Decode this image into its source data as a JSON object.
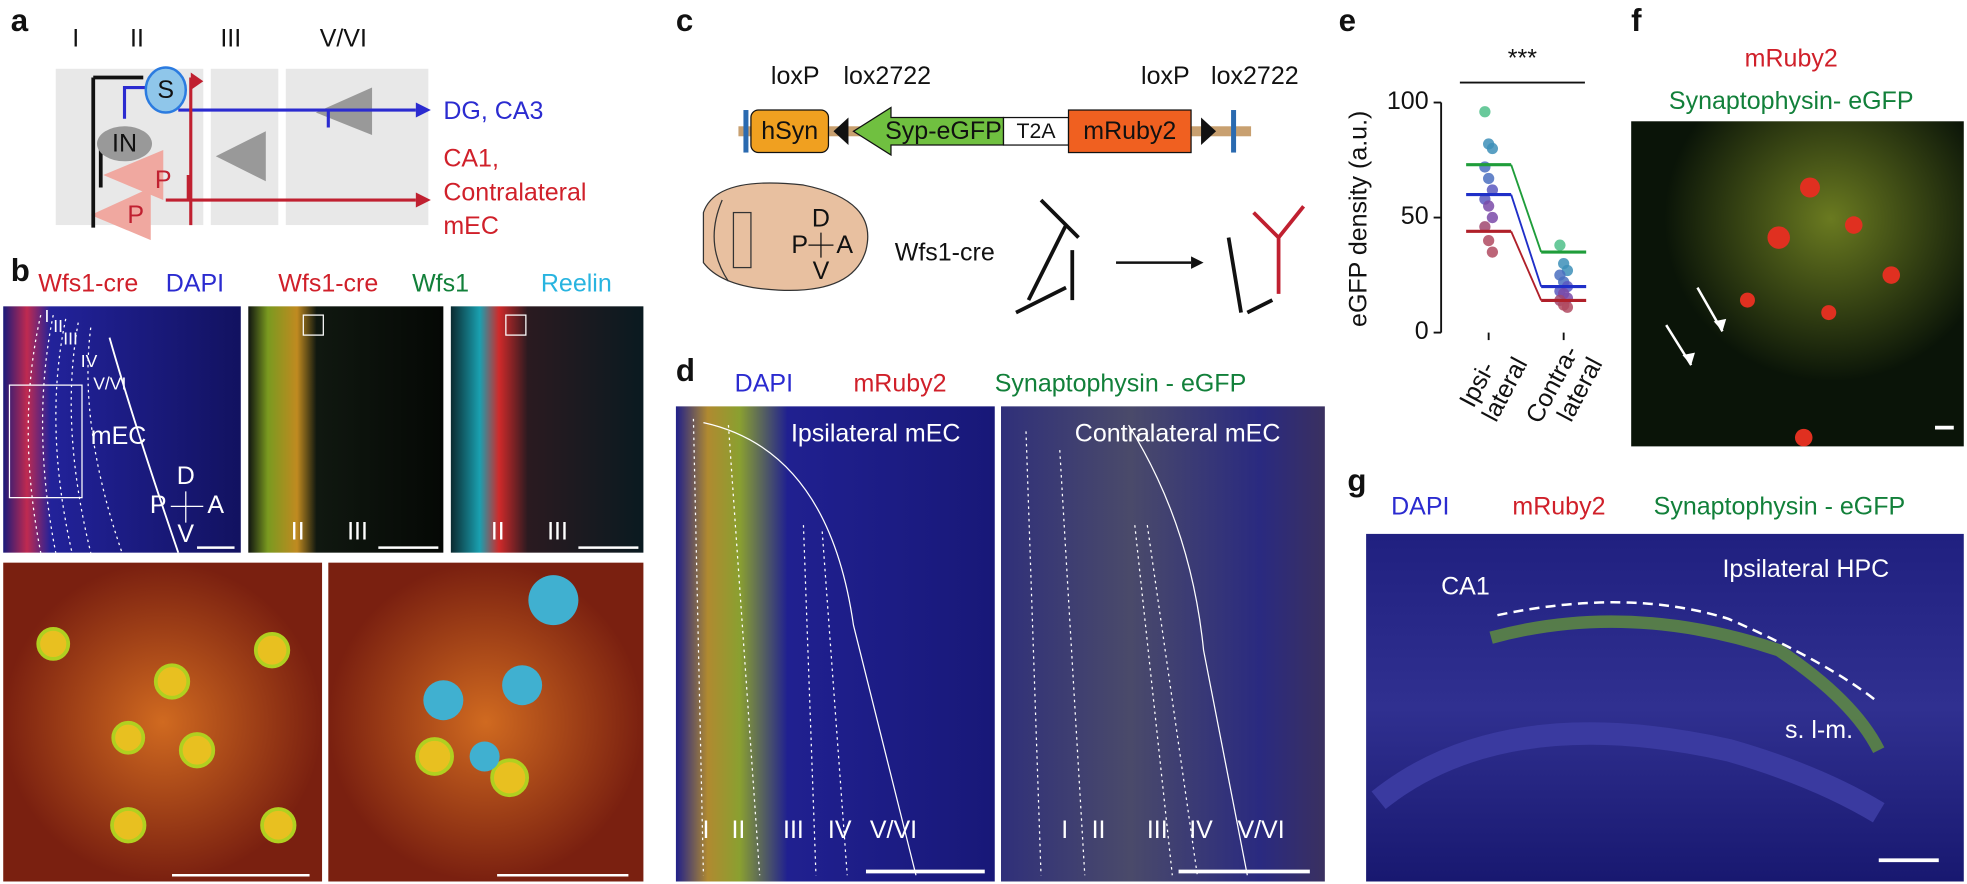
{
  "panels": {
    "a": {
      "label": "a",
      "layers": [
        "I",
        "II",
        "III",
        "V/VI"
      ],
      "cells": [
        "S",
        "IN",
        "P",
        "P"
      ],
      "blue_target": "DG, CA3",
      "red_target": [
        "CA1,",
        "Contralateral",
        "mEC"
      ]
    },
    "b": {
      "label": "b",
      "top_left": {
        "stains": [
          "Wfs1-cre",
          "DAPI"
        ],
        "layers": [
          "I",
          "II",
          "III",
          "IV",
          "V/VI"
        ],
        "region": "mEC",
        "compass": [
          "D",
          "P",
          "A",
          "V"
        ]
      },
      "top_right": {
        "stains": [
          "Wfs1-cre",
          "Wfs1",
          "Reelin"
        ],
        "layers": [
          "II",
          "III",
          "II",
          "III"
        ]
      }
    },
    "c": {
      "label": "c",
      "sites": [
        "loxP",
        "lox2722",
        "loxP",
        "lox2722"
      ],
      "elements": [
        "hSyn",
        "Syp-eGFP",
        "T2A",
        "mRuby2"
      ],
      "compass": [
        "D",
        "P",
        "A",
        "V"
      ],
      "mouse": "Wfs1-cre"
    },
    "d": {
      "label": "d",
      "stains": [
        "DAPI",
        "mRuby2",
        "Synaptophysin - eGFP"
      ],
      "left_title": "Ipsilateral mEC",
      "right_title": "Contralateral mEC",
      "left_layers": [
        "I",
        "II",
        "III",
        "IV",
        "V/VI"
      ],
      "right_layers": [
        "I",
        "II",
        "III",
        "IV",
        "V/VI"
      ]
    },
    "f": {
      "label": "f",
      "stains": [
        "mRuby2",
        "Synaptophysin- eGFP"
      ]
    },
    "g": {
      "label": "g",
      "stains": [
        "DAPI",
        "mRuby2",
        "Synaptophysin - eGFP"
      ],
      "regions": [
        "CA1",
        "Ipsilateral HPC",
        "s. l-m."
      ]
    }
  },
  "chart_data": {
    "type": "paired",
    "label": "e",
    "ylabel": "eGFP density (a.u.)",
    "significance": "***",
    "categories": [
      [
        "Ipsi-",
        "lateral"
      ],
      [
        "Contra-",
        "lateral"
      ]
    ],
    "ylim": [
      0,
      100
    ],
    "yticks": [
      0,
      50,
      100
    ],
    "series": [
      {
        "color": "#1f9d3a",
        "values": [
          73,
          35
        ]
      },
      {
        "color": "#1f2fc8",
        "values": [
          60,
          20
        ]
      },
      {
        "color": "#b0202a",
        "values": [
          44,
          14
        ]
      }
    ],
    "dots": [
      {
        "color": "#4fc08a",
        "values": [
          96,
          38
        ]
      },
      {
        "color": "#3d8fb8",
        "values": [
          82,
          30
        ]
      },
      {
        "color": "#3d8fb8",
        "values": [
          80,
          27
        ]
      },
      {
        "color": "#4a6fc0",
        "values": [
          72,
          25
        ]
      },
      {
        "color": "#4a6fc0",
        "values": [
          67,
          22
        ]
      },
      {
        "color": "#5a58c0",
        "values": [
          62,
          20
        ]
      },
      {
        "color": "#5a58c0",
        "values": [
          58,
          18
        ]
      },
      {
        "color": "#7a4aa8",
        "values": [
          55,
          17
        ]
      },
      {
        "color": "#7a4aa8",
        "values": [
          50,
          15
        ]
      },
      {
        "color": "#a04870",
        "values": [
          46,
          14
        ]
      },
      {
        "color": "#b04a60",
        "values": [
          40,
          12
        ]
      },
      {
        "color": "#b04a60",
        "values": [
          35,
          11
        ]
      }
    ]
  }
}
